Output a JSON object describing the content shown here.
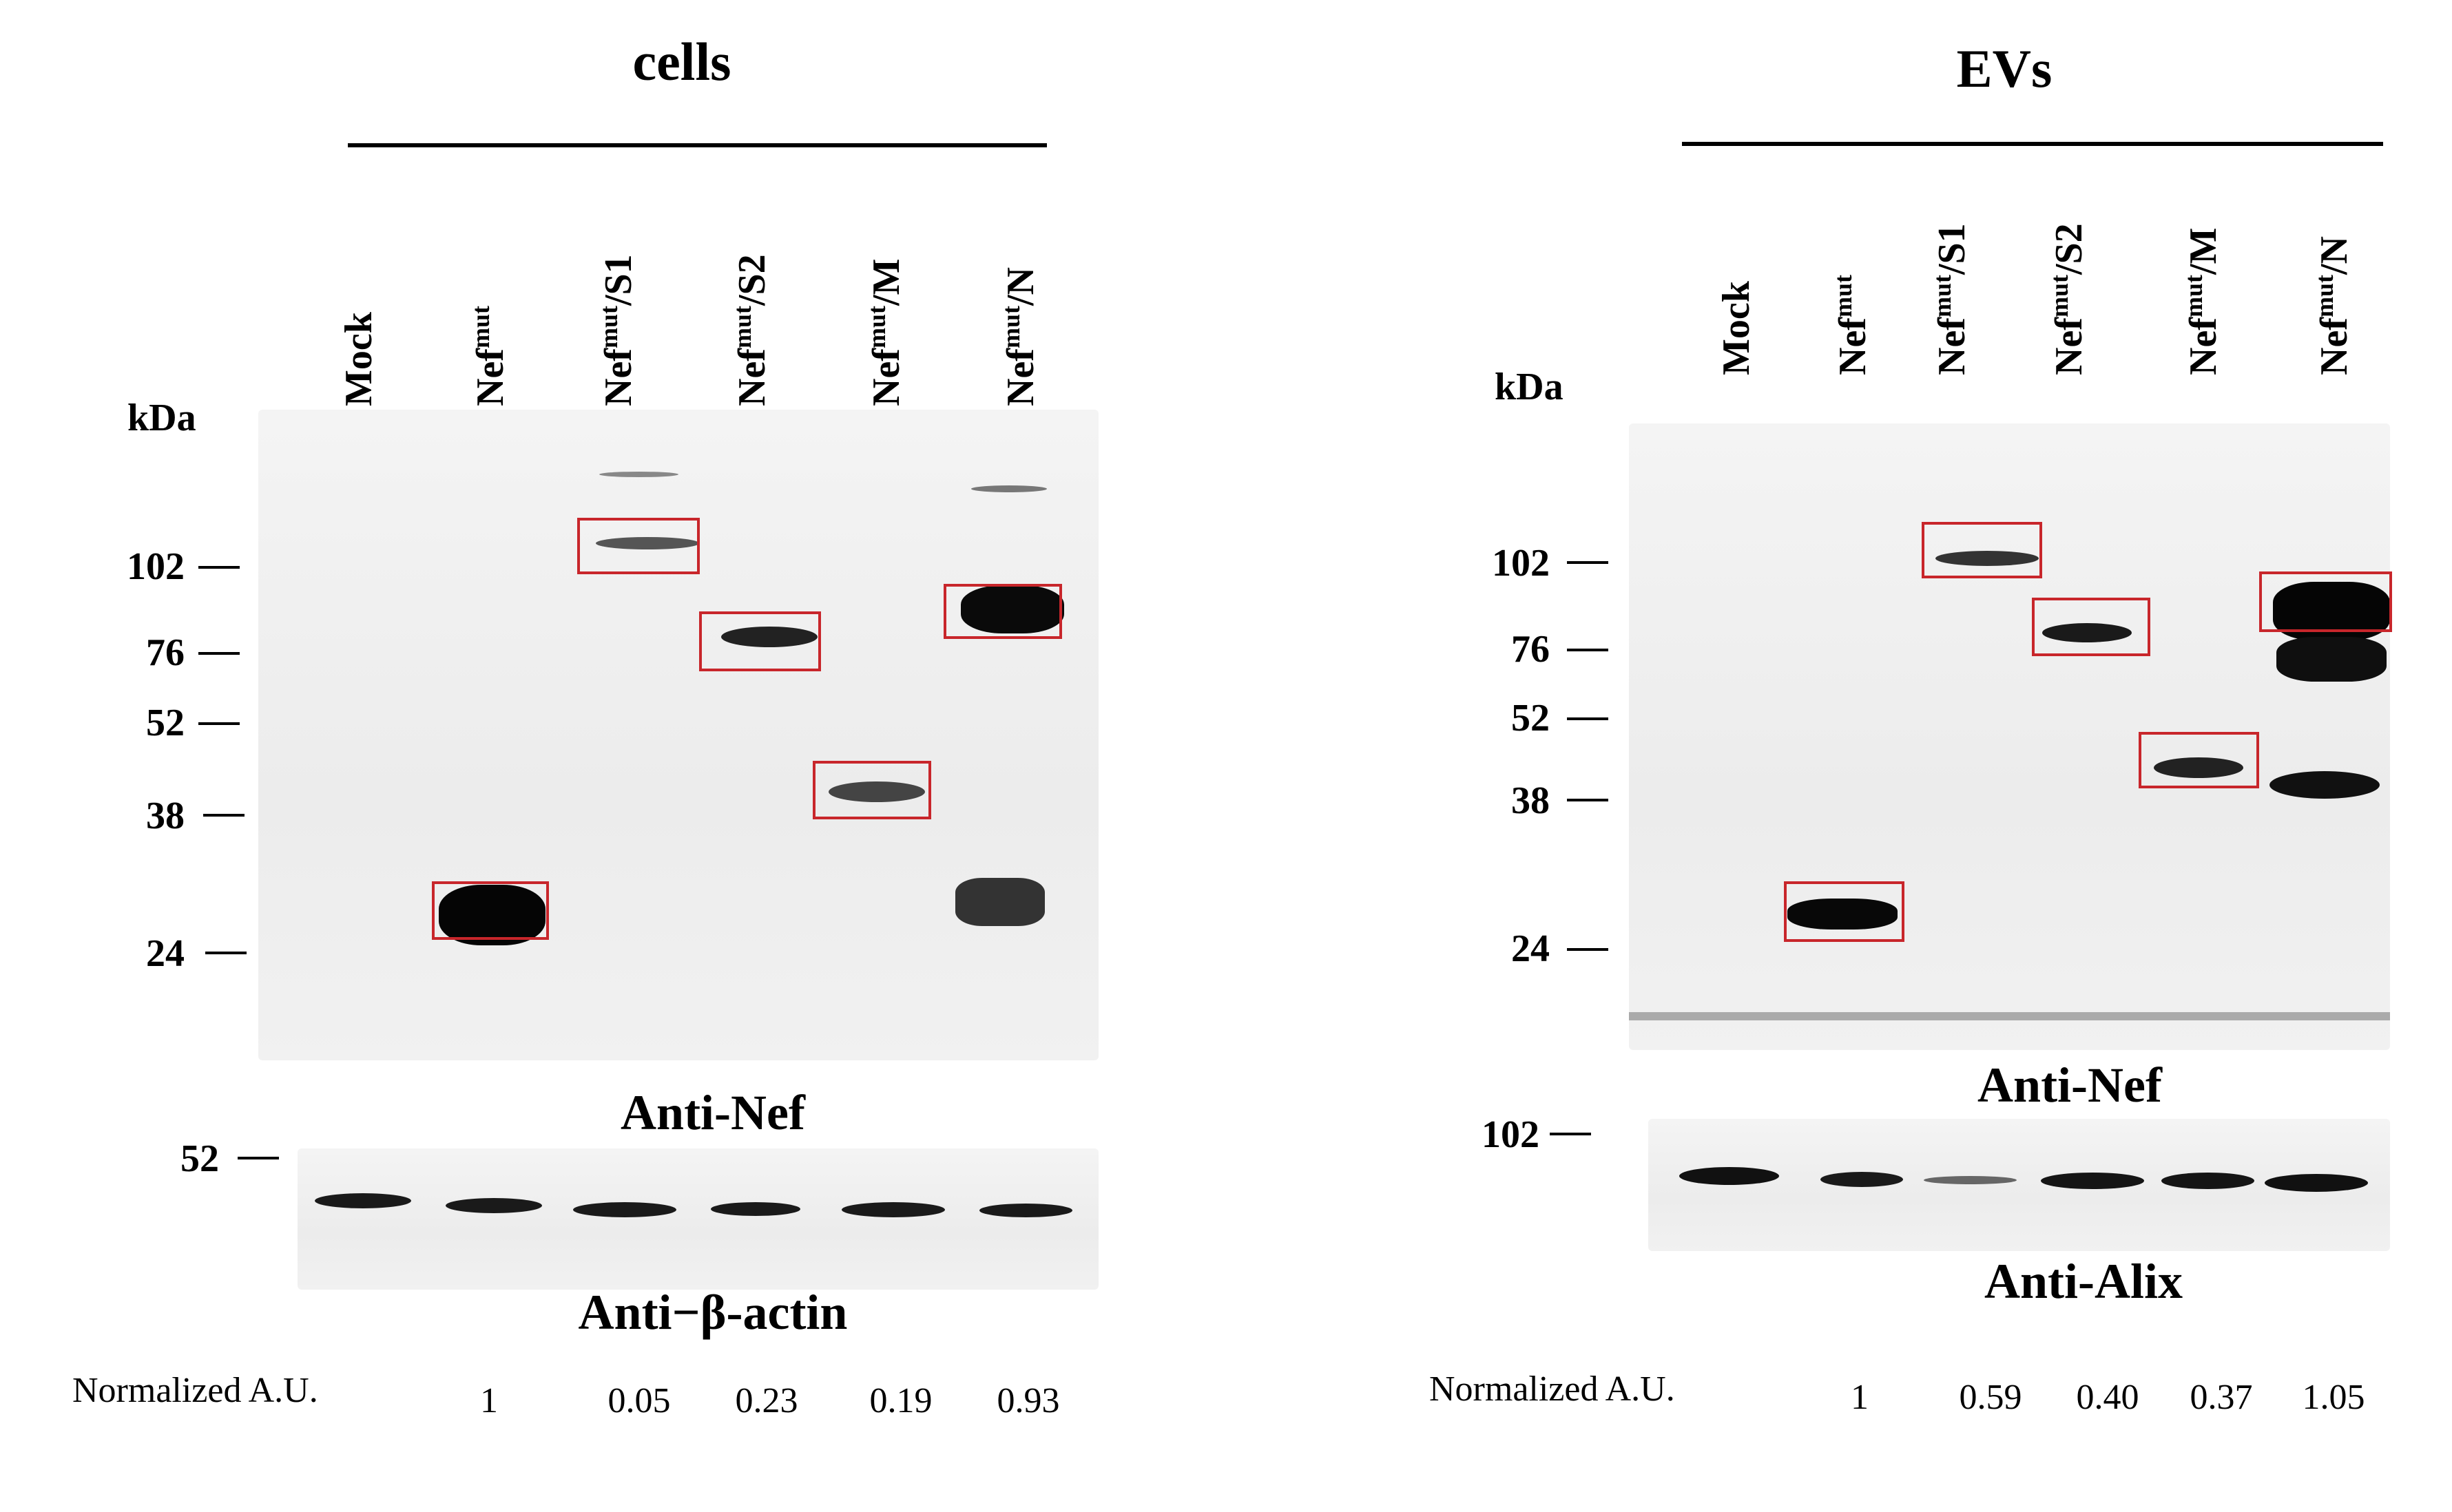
{
  "left": {
    "title": "cells",
    "lanes": [
      "Mock",
      "Nef",
      "Nef",
      "Nef",
      "Nef",
      "Nef"
    ],
    "lane_sup": [
      "",
      "mut",
      "mut",
      "mut",
      "mut",
      "mut"
    ],
    "lane_suffix": [
      "",
      "",
      "/S1",
      "/S2",
      "/M",
      "/N"
    ],
    "kda_label": "kDa",
    "markers": [
      "102",
      "76",
      "52",
      "38",
      "24"
    ],
    "main_antibody": "Anti-Nef",
    "loading_marker": "52",
    "loading_antibody": "Anti−β-actin",
    "au_label": "Normalized  A.U.",
    "au_values": [
      "1",
      "0.05",
      "0.23",
      "0.19",
      "0.93"
    ]
  },
  "right": {
    "title": "EVs",
    "lanes": [
      "Mock",
      "Nef",
      "Nef",
      "Nef",
      "Nef",
      "Nef"
    ],
    "lane_sup": [
      "",
      "mut",
      "mut",
      "mut",
      "mut",
      "mut"
    ],
    "lane_suffix": [
      "",
      "",
      "/S1",
      "/S2",
      "/M",
      "/N"
    ],
    "kda_label": "kDa",
    "markers": [
      "102",
      "76",
      "52",
      "38",
      "24"
    ],
    "main_antibody": "Anti-Nef",
    "loading_marker": "102",
    "loading_antibody": "Anti-Alix",
    "au_label": "Normalized  A.U.",
    "au_values": [
      "1",
      "0.59",
      "0.40",
      "0.37",
      "1.05"
    ]
  },
  "colors": {
    "highlight_box": "#c8262b",
    "band": "#111111"
  }
}
